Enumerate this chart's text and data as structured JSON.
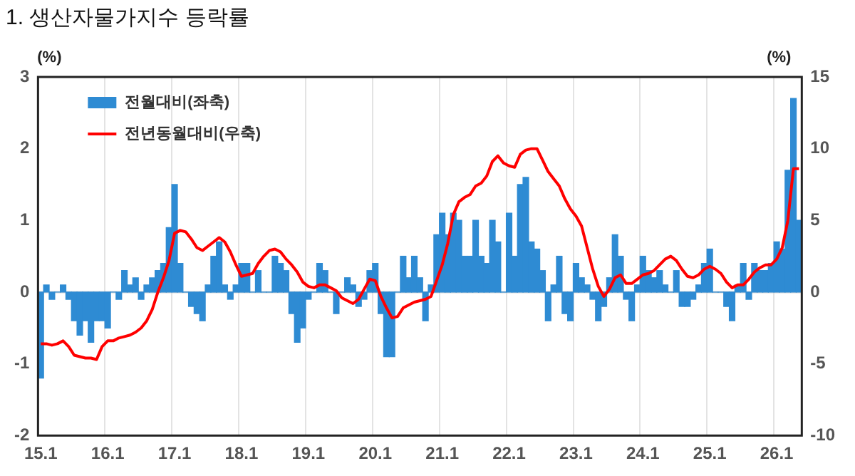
{
  "chart_data": {
    "type": "bar",
    "title": "1. 생산자물가지수 등락률",
    "ylabel": "(%)",
    "y2label": "(%)",
    "categories": [
      "15.1",
      null,
      null,
      null,
      null,
      null,
      null,
      null,
      null,
      null,
      null,
      null,
      "16.1",
      null,
      null,
      null,
      null,
      null,
      null,
      null,
      null,
      null,
      null,
      null,
      "17.1",
      null,
      null,
      null,
      null,
      null,
      null,
      null,
      null,
      null,
      null,
      null,
      "18.1",
      null,
      null,
      null,
      null,
      null,
      null,
      null,
      null,
      null,
      null,
      null,
      "19.1",
      null,
      null,
      null,
      null,
      null,
      null,
      null,
      null,
      null,
      null,
      null,
      "20.1",
      null,
      null,
      null,
      null,
      null,
      null,
      null,
      null,
      null,
      null,
      null,
      "21.1",
      null,
      null,
      null,
      null,
      null,
      null,
      null,
      null,
      null,
      null,
      null,
      "22.1",
      null,
      null,
      null,
      null,
      null,
      null,
      null,
      null,
      null,
      null,
      null,
      "23.1",
      null,
      null,
      null,
      null,
      null,
      null,
      null,
      null,
      null,
      null,
      null,
      "24.1",
      null,
      null,
      null,
      null,
      null,
      null,
      null,
      null,
      null,
      null,
      null,
      "25.1",
      null,
      null,
      null,
      null,
      null,
      null,
      null,
      null,
      null,
      null,
      null,
      "26.1",
      null,
      null,
      null,
      null
    ],
    "series": [
      {
        "name": "전월대비(좌축)",
        "color": "#2e8bd3",
        "values": [
          -1.2,
          0.1,
          -0.1,
          0,
          0.1,
          -0.1,
          -0.4,
          -0.6,
          -0.4,
          -0.7,
          -0.4,
          -0.4,
          -0.5,
          0,
          -0.1,
          0.3,
          0.1,
          0.2,
          -0.1,
          0.1,
          0.2,
          0.3,
          0.4,
          0.9,
          1.5,
          0.4,
          0,
          -0.2,
          -0.3,
          -0.4,
          0.1,
          0.5,
          0.7,
          0.1,
          -0.1,
          0.1,
          0.4,
          0.4,
          0,
          0.3,
          0,
          0,
          0.5,
          0.4,
          0.3,
          -0.3,
          -0.7,
          -0.5,
          -0.1,
          0,
          0.4,
          0.3,
          0,
          -0.3,
          0,
          0.2,
          0.1,
          -0.2,
          -0.1,
          0.3,
          0.4,
          -0.3,
          -0.9,
          -0.9,
          0,
          0.5,
          0.2,
          0.5,
          0.2,
          -0.4,
          0.1,
          0.8,
          1.1,
          0.8,
          1.1,
          1.0,
          0.5,
          0.5,
          1.0,
          0.5,
          0.4,
          1.0,
          0.7,
          0,
          1.1,
          0.5,
          1.5,
          1.6,
          0.7,
          0.6,
          0.3,
          -0.4,
          0.1,
          0.5,
          -0.3,
          -0.4,
          0.4,
          0.2,
          0.1,
          -0.1,
          -0.4,
          -0.2,
          0.2,
          0.8,
          0.5,
          -0.1,
          -0.4,
          0.1,
          0.5,
          0.3,
          0.2,
          0.3,
          0.1,
          0,
          0.3,
          -0.2,
          -0.2,
          -0.1,
          0.1,
          0.4,
          0.6,
          0,
          0,
          -0.2,
          -0.4,
          0.1,
          0.4,
          -0.1,
          0.4,
          0.3,
          0.3,
          0.4,
          0.7,
          0.6,
          1.7,
          2.7,
          1.0
        ]
      },
      {
        "name": "전년동월대비(우축)",
        "type": "line",
        "axis": "y2",
        "color": "#ff0000",
        "values": [
          -3.6,
          -3.6,
          -3.7,
          -3.6,
          -3.4,
          -3.8,
          -4.4,
          -4.5,
          -4.6,
          -4.6,
          -4.7,
          -3.8,
          -3.4,
          -3.4,
          -3.2,
          -3.1,
          -3.0,
          -2.8,
          -2.5,
          -2.0,
          -1.2,
          0,
          1.0,
          2.2,
          4.1,
          4.3,
          4.2,
          3.7,
          3.1,
          2.9,
          3.2,
          3.5,
          3.8,
          3.5,
          2.8,
          1.9,
          1.1,
          1.2,
          1.3,
          2.0,
          2.5,
          2.9,
          3.0,
          2.8,
          2.3,
          1.9,
          1.4,
          0.7,
          0.4,
          0.3,
          0.5,
          0.5,
          0.3,
          0.1,
          -0.4,
          -0.6,
          -0.8,
          -0.5,
          0.2,
          0.9,
          0.8,
          -0.3,
          -1.1,
          -1.8,
          -1.7,
          -1.1,
          -0.9,
          -0.7,
          -0.6,
          -0.5,
          -0.3,
          0.8,
          1.9,
          3.4,
          5.4,
          6.3,
          6.6,
          6.8,
          7.4,
          7.6,
          8.1,
          9.1,
          9.5,
          9.0,
          8.8,
          8.7,
          9.6,
          9.9,
          10.0,
          10.0,
          9.2,
          8.4,
          7.9,
          7.4,
          6.5,
          5.8,
          5.3,
          4.6,
          3.1,
          1.6,
          0.4,
          -0.3,
          0.2,
          1.0,
          1.2,
          0.6,
          0.6,
          0.9,
          1.2,
          1.3,
          1.5,
          1.9,
          2.3,
          2.5,
          2.2,
          1.6,
          1.1,
          1.0,
          1.2,
          1.6,
          1.8,
          1.6,
          1.3,
          0.7,
          0.3,
          0.5,
          0.5,
          0.9,
          1.4,
          1.7,
          1.9,
          1.9,
          2.3,
          3.1,
          5.0,
          8.6,
          8.6
        ]
      }
    ],
    "ylim": [
      -2,
      3
    ],
    "yticks": [
      -2,
      -1,
      0,
      1,
      2,
      3
    ],
    "y2lim": [
      -10,
      15
    ],
    "y2ticks": [
      -10,
      -5,
      0,
      5,
      10,
      15
    ],
    "ref_lines": [
      {
        "axis": "y",
        "value": 0,
        "color": "#d9d9d9"
      }
    ],
    "grid": "x",
    "legend": "top left",
    "marker": "none"
  }
}
